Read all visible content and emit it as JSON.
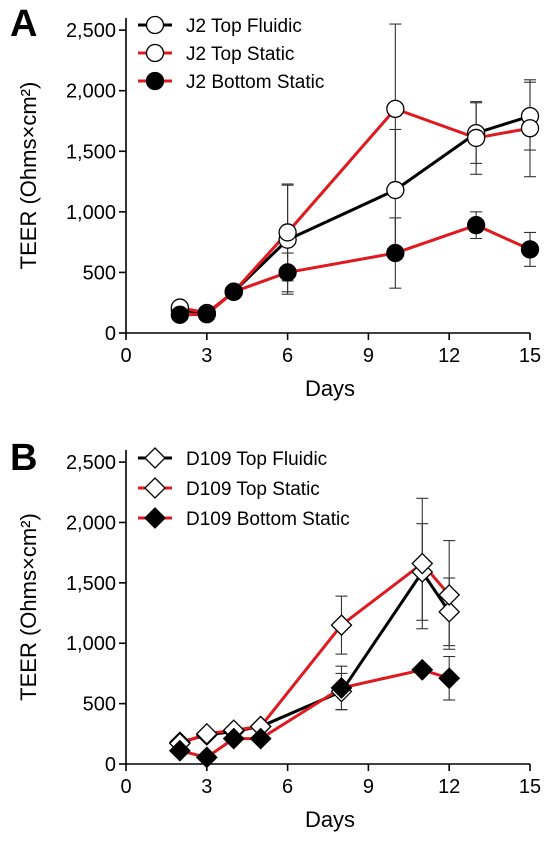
{
  "chart_data": [
    {
      "type": "line",
      "panel_label": "A",
      "xlabel": "Days",
      "ylabel": "TEER (Ohms×cm²)",
      "xlim": [
        0,
        15
      ],
      "ylim": [
        0,
        2600
      ],
      "xticks": [
        0,
        3,
        6,
        9,
        12,
        15
      ],
      "xtick_labels": [
        "0",
        "3",
        "6",
        "9",
        "12",
        "15"
      ],
      "yticks": [
        0,
        500,
        1000,
        1500,
        2000,
        2500
      ],
      "ytick_labels": [
        "0",
        "500",
        "1,000",
        "1,500",
        "2,000",
        "2,500"
      ],
      "grid": false,
      "legend_position": "top-left",
      "marker": "circle",
      "series": [
        {
          "name": "J2 Top Fluidic",
          "line_color": "#000000",
          "marker_fill": "#ffffff",
          "x": [
            2,
            3,
            4,
            6,
            10,
            13,
            15
          ],
          "y": [
            190,
            160,
            340,
            770,
            1180,
            1650,
            1790
          ],
          "err": [
            0,
            0,
            0,
            450,
            500,
            250,
            280
          ]
        },
        {
          "name": "J2 Top Static",
          "line_color": "#e0191e",
          "marker_fill": "#ffffff",
          "x": [
            2,
            3,
            4,
            6,
            10,
            13,
            15
          ],
          "y": [
            210,
            165,
            340,
            830,
            1850,
            1610,
            1690
          ],
          "err": [
            0,
            0,
            0,
            400,
            700,
            300,
            400
          ]
        },
        {
          "name": "J2 Bottom Static",
          "line_color": "#e0191e",
          "marker_fill": "#000000",
          "x": [
            2,
            3,
            4,
            6,
            10,
            13,
            15
          ],
          "y": [
            150,
            155,
            340,
            500,
            660,
            890,
            690
          ],
          "err": [
            0,
            0,
            0,
            160,
            290,
            110,
            140
          ]
        }
      ]
    },
    {
      "type": "line",
      "panel_label": "B",
      "xlabel": "Days",
      "ylabel": "TEER (Ohms×cm²)",
      "xlim": [
        0,
        15
      ],
      "ylim": [
        0,
        2600
      ],
      "xticks": [
        0,
        3,
        6,
        9,
        12,
        15
      ],
      "xtick_labels": [
        "0",
        "3",
        "6",
        "9",
        "12",
        "15"
      ],
      "yticks": [
        0,
        500,
        1000,
        1500,
        2000,
        2500
      ],
      "ytick_labels": [
        "0",
        "500",
        "1,000",
        "1,500",
        "2,000",
        "2,500"
      ],
      "grid": false,
      "legend_position": "top-left",
      "marker": "diamond",
      "series": [
        {
          "name": "D109 Top Fluidic",
          "line_color": "#000000",
          "marker_fill": "#ffffff",
          "x": [
            2,
            3,
            4,
            5,
            8,
            11,
            12
          ],
          "y": [
            180,
            240,
            270,
            310,
            600,
            1590,
            1260
          ],
          "err": [
            0,
            0,
            0,
            0,
            150,
            400,
            280
          ]
        },
        {
          "name": "D109 Top Static",
          "line_color": "#e0191e",
          "marker_fill": "#ffffff",
          "x": [
            2,
            3,
            4,
            5,
            8,
            11,
            12
          ],
          "y": [
            170,
            250,
            280,
            310,
            1150,
            1660,
            1400
          ],
          "err": [
            0,
            0,
            0,
            0,
            240,
            540,
            450
          ]
        },
        {
          "name": "D109 Bottom Static",
          "line_color": "#e0191e",
          "marker_fill": "#000000",
          "x": [
            2,
            3,
            4,
            5,
            8,
            11,
            12
          ],
          "y": [
            110,
            55,
            210,
            210,
            630,
            780,
            710
          ],
          "err": [
            0,
            0,
            0,
            0,
            180,
            0,
            180
          ]
        }
      ]
    }
  ]
}
